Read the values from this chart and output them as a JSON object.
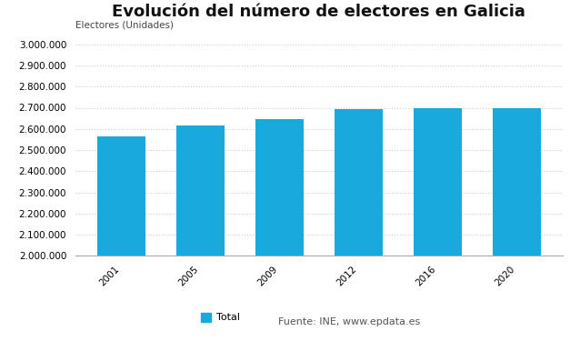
{
  "title": "Evolución del número de electores en Galicia",
  "ylabel": "Electores (Unidades)",
  "categories": [
    "2001",
    "2005",
    "2009",
    "2012",
    "2016",
    "2020"
  ],
  "values": [
    2565000,
    2615000,
    2648000,
    2693000,
    2700000,
    2697000
  ],
  "bar_color": "#19AADC",
  "ylim_min": 2000000,
  "ylim_max": 3000000,
  "ytick_step": 100000,
  "background_color": "#ffffff",
  "grid_color": "#cccccc",
  "legend_label": "Total",
  "source_text": "Fuente: INE, www.epdata.es",
  "title_fontsize": 13,
  "axis_label_fontsize": 7.5,
  "tick_fontsize": 7.5,
  "legend_fontsize": 8
}
